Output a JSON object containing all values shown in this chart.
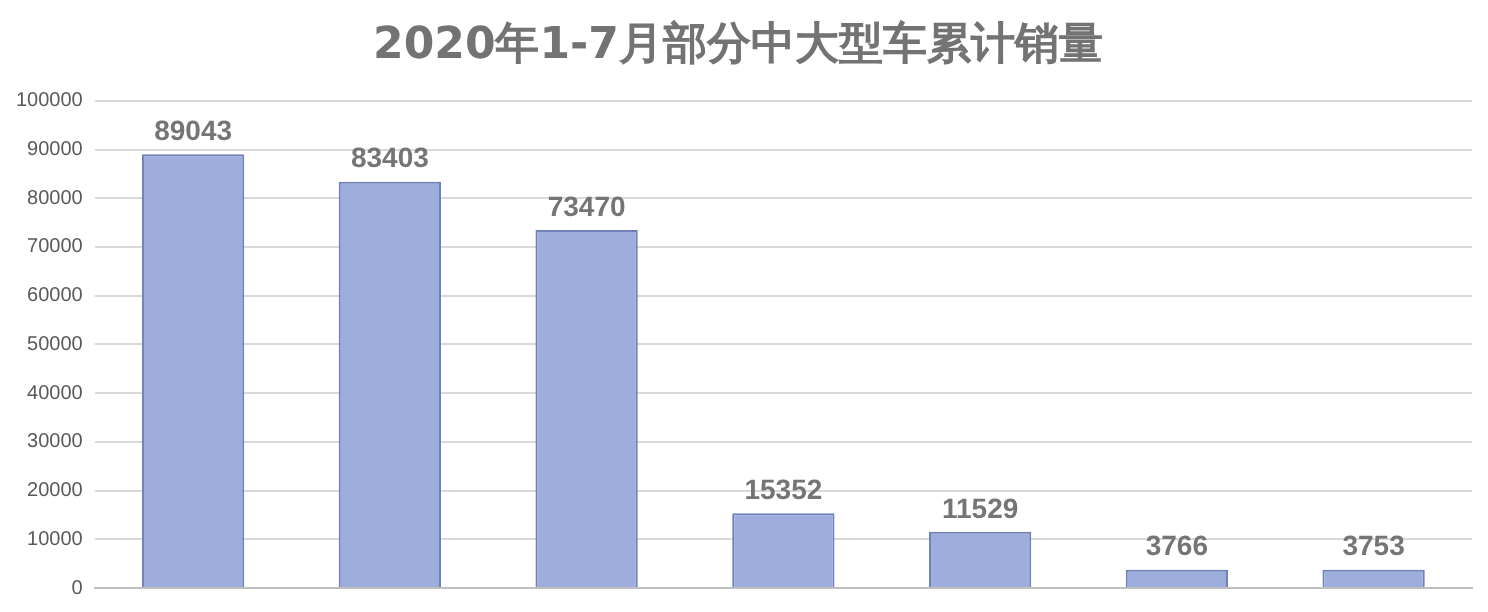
{
  "chart_data": {
    "type": "bar",
    "title": "2020年1-7月部分中大型车累计销量",
    "categories": [
      null,
      null,
      null,
      null,
      null,
      null,
      null
    ],
    "values": [
      89043,
      83403,
      73470,
      15352,
      11529,
      3766,
      3753
    ],
    "color": "#9dadde",
    "ylim": [
      0,
      100000
    ],
    "yticks": [
      0,
      10000,
      20000,
      30000,
      40000,
      50000,
      60000,
      70000,
      80000,
      90000,
      100000
    ],
    "grid": "y",
    "data_labels": true,
    "tick_labels": "y",
    "legend": false
  }
}
